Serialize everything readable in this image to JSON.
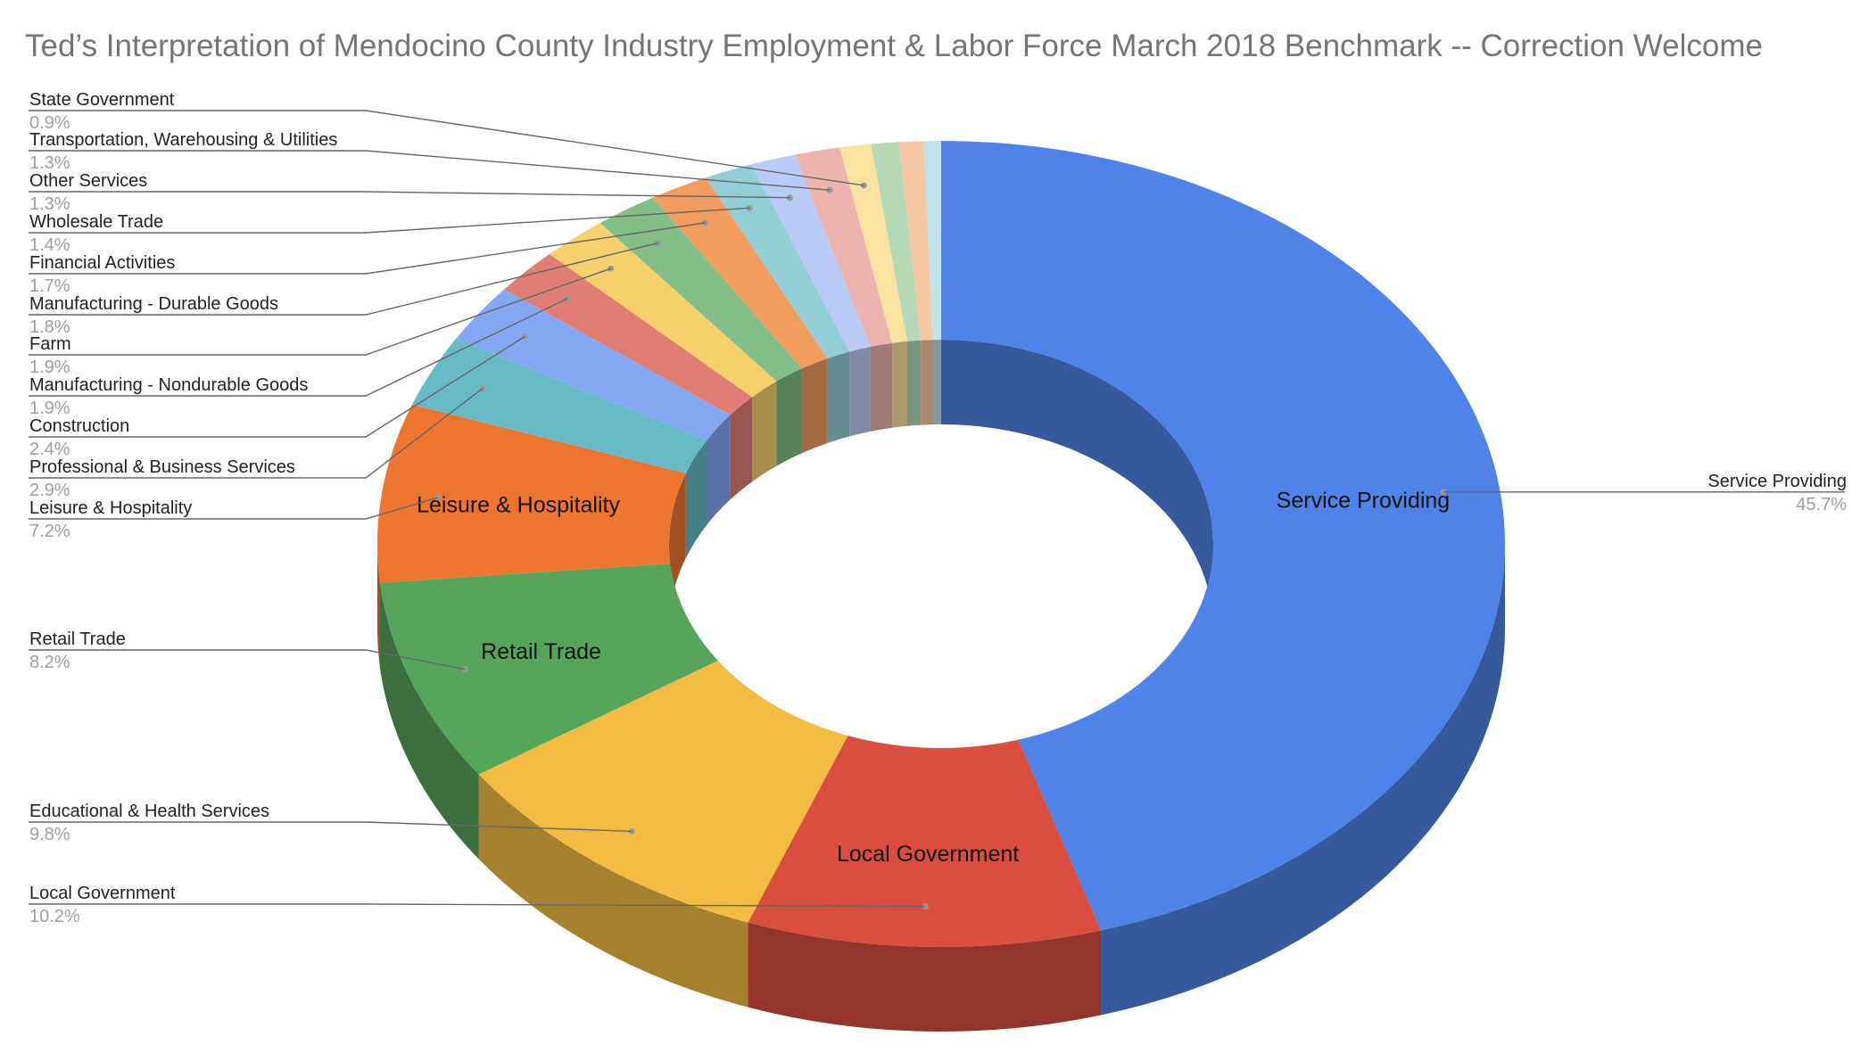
{
  "chart_data": {
    "type": "pie",
    "style": "3d-donut",
    "title": "Ted’s Interpretation of Mendocino County Industry Employment & Labor Force March 2018 Benchmark  -- Correction Welcome",
    "slices": [
      {
        "name": "Service Providing",
        "value": 45.7,
        "label": "45.7%",
        "color": "#4F83E8",
        "inside_label": true
      },
      {
        "name": "Local Government",
        "value": 10.2,
        "label": "10.2%",
        "color": "#D94E3F",
        "inside_label": true
      },
      {
        "name": "Educational & Health Services",
        "value": 9.8,
        "label": "9.8%",
        "color": "#F2BC42",
        "inside_label": false
      },
      {
        "name": "Retail Trade",
        "value": 8.2,
        "label": "8.2%",
        "color": "#57A55B",
        "inside_label": true
      },
      {
        "name": "Leisure & Hospitality",
        "value": 7.2,
        "label": "7.2%",
        "color": "#EE7530",
        "inside_label": true
      },
      {
        "name": "Professional & Business Services",
        "value": 2.9,
        "label": "2.9%",
        "color": "#67BBC6",
        "inside_label": false
      },
      {
        "name": "Construction",
        "value": 2.4,
        "label": "2.4%",
        "color": "#85A8F2",
        "inside_label": false
      },
      {
        "name": "Manufacturing - Nondurable Goods",
        "value": 1.9,
        "label": "1.9%",
        "color": "#E07E75",
        "inside_label": false
      },
      {
        "name": "Farm",
        "value": 1.9,
        "label": "1.9%",
        "color": "#F6D06C",
        "inside_label": false
      },
      {
        "name": "Manufacturing - Durable Goods",
        "value": 1.8,
        "label": "1.8%",
        "color": "#83BF86",
        "inside_label": false
      },
      {
        "name": "Financial Activities",
        "value": 1.7,
        "label": "1.7%",
        "color": "#F29C5E",
        "inside_label": false
      },
      {
        "name": "Wholesale Trade",
        "value": 1.4,
        "label": "1.4%",
        "color": "#93CED6",
        "inside_label": false
      },
      {
        "name": "Other Services",
        "value": 1.3,
        "label": "1.3%",
        "color": "#B9CBF6",
        "inside_label": false
      },
      {
        "name": "Transportation, Warehousing & Utilities",
        "value": 1.3,
        "label": "1.3%",
        "color": "#EDB3AE",
        "inside_label": false
      },
      {
        "name": "State Government",
        "value": 0.9,
        "label": "0.9%",
        "color": "#FAE3A1",
        "inside_label": false
      },
      {
        "name": "",
        "value": 0.8,
        "label": "",
        "color": "#B5D9B7",
        "inside_label": false
      },
      {
        "name": "",
        "value": 0.7,
        "label": "",
        "color": "#F7C7A4",
        "inside_label": false
      },
      {
        "name": "",
        "value": 0.5,
        "label": "",
        "color": "#BFE3E8",
        "inside_label": false
      }
    ],
    "legend": "none"
  }
}
